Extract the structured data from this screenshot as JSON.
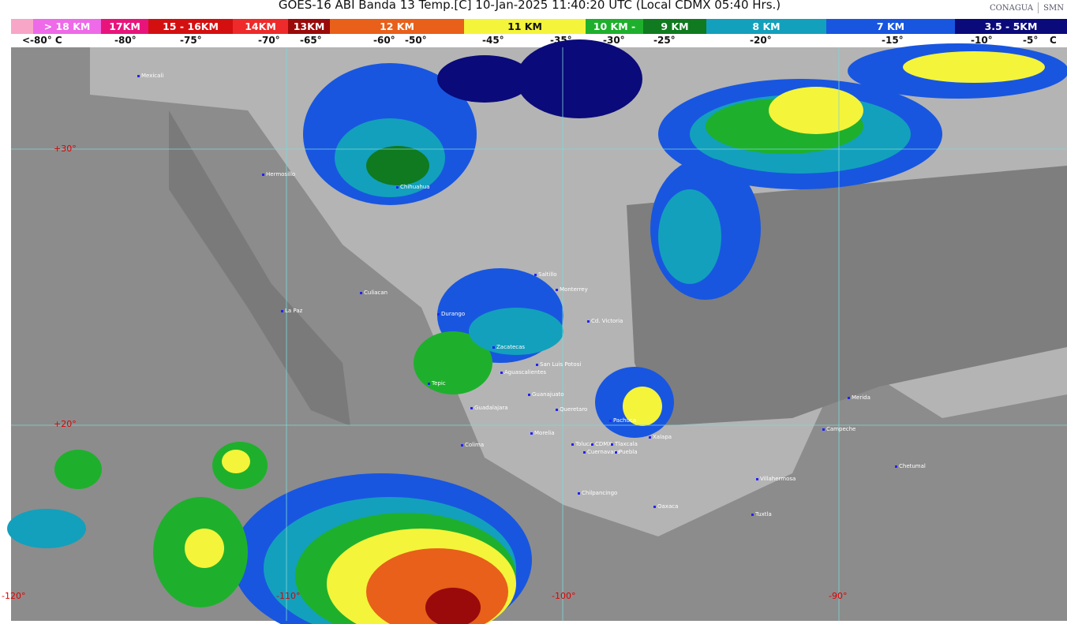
{
  "title": "GOES-16 ABI Banda 13 Temp.[C] 10-Jan-2025 11:40:20 UTC (Local CDMX  05:40 Hrs.)",
  "logos": {
    "conagua": "CONAGUA",
    "smn": "SMN"
  },
  "legend": [
    {
      "label": "",
      "color": "#f7a6c8"
    },
    {
      "label": "> 18 KM",
      "color": "#ee6ae8"
    },
    {
      "label": "17KM",
      "color": "#e8147c"
    },
    {
      "label": "15 - 16KM",
      "color": "#d40f10"
    },
    {
      "label": "14KM",
      "color": "#ee2a2a"
    },
    {
      "label": "13KM",
      "color": "#9a0a0a"
    },
    {
      "label": "12 KM",
      "color": "#e8601a"
    },
    {
      "label": "11 KM",
      "color": "#f4f43a"
    },
    {
      "label": "10 KM -",
      "color": "#1eb02c"
    },
    {
      "label": "9 KM",
      "color": "#0f7a1f"
    },
    {
      "label": "8 KM",
      "color": "#13a0bc"
    },
    {
      "label": "7 KM",
      "color": "#1856e0"
    },
    {
      "label": "3.5 - 5KM",
      "color": "#0a0a7a"
    }
  ],
  "temps": [
    "<-80° C",
    "-80°",
    "-75°",
    "-70°",
    "-65°",
    "-60°",
    "-50°",
    "-45°",
    "-35°",
    "-30°",
    "-25°",
    "-20°",
    "-15°",
    "-10°",
    "-5°",
    "C"
  ],
  "grid": {
    "lat": [
      "+30°",
      "+20°"
    ],
    "lon": [
      "-120°",
      "-110°",
      "-100°",
      "-90°"
    ]
  },
  "cities": [
    "Mexicali",
    "Hermosillo",
    "Chihuahua",
    "La Paz",
    "Culiacan",
    "Durango",
    "Saltillo",
    "Monterrey",
    "Cd. Victoria",
    "Zacatecas",
    "San Luis Potosi",
    "Aguascalientes",
    "Tepic",
    "Guadalajara",
    "Guanajuato",
    "Queretaro",
    "Pachuca",
    "Xalapa",
    "Colima",
    "Morelia",
    "Toluca",
    "CDMX",
    "Tlaxcala",
    "Cuernavaca",
    "Puebla",
    "Chilpancingo",
    "Oaxaca",
    "Villahermosa",
    "Tuxtla",
    "Campeche",
    "Merida",
    "Chetumal"
  ]
}
